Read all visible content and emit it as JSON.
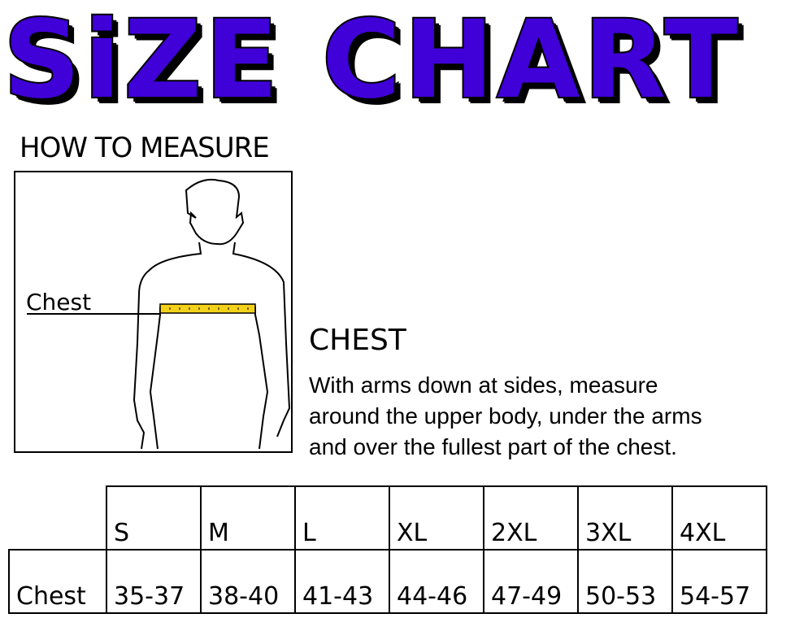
{
  "title": "SiZE CHART",
  "how_to_measure": "HOW TO MEASURE",
  "figure": {
    "label": "Chest",
    "tape_color": "#f5d21a"
  },
  "chest_section": {
    "heading": "CHEST",
    "lines": [
      "With arms down at sides, measure",
      "around the upper body, under the arms",
      "and over the fullest part of the chest."
    ]
  },
  "colors": {
    "title_fill": "#4000d8",
    "title_outline": "#000000"
  },
  "table": {
    "sizes": [
      "S",
      "M",
      "L",
      "XL",
      "2XL",
      "3XL",
      "4XL"
    ],
    "rows": [
      {
        "label": "Chest",
        "values": [
          "35-37",
          "38-40",
          "41-43",
          "44-46",
          "47-49",
          "50-53",
          "54-57"
        ]
      }
    ]
  }
}
